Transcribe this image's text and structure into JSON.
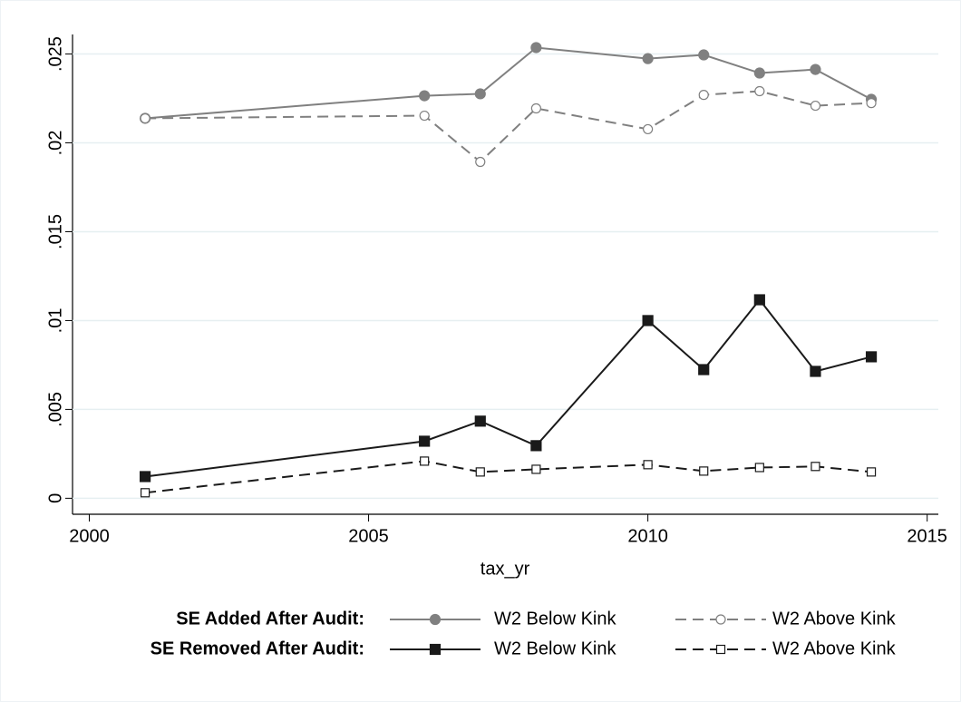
{
  "chart_data": {
    "type": "line",
    "x_label": "tax_yr",
    "x": [
      2001,
      2006,
      2007,
      2008,
      2010,
      2011,
      2012,
      2013,
      2014
    ],
    "series": [
      {
        "name": "W2 Below Kink",
        "color": "#808080",
        "dashed": false,
        "marker": "circle",
        "values": [
          0.02138,
          0.02265,
          0.02276,
          0.02536,
          0.02474,
          0.02495,
          0.02393,
          0.02413,
          0.02245
        ]
      },
      {
        "name": "W2 Above Kink",
        "color": "#808080",
        "dashed": true,
        "marker": "circle-open",
        "values": [
          0.02138,
          0.02153,
          0.01893,
          0.02194,
          0.02077,
          0.0227,
          0.02291,
          0.02209,
          0.02224
        ]
      },
      {
        "name": "W2 Below Kink",
        "color": "#1a1a1a",
        "dashed": false,
        "marker": "square",
        "values": [
          0.00122,
          0.00321,
          0.00434,
          0.00296,
          0.01,
          0.00724,
          0.01117,
          0.00714,
          0.00796
        ]
      },
      {
        "name": "W2 Above Kink",
        "color": "#1a1a1a",
        "dashed": true,
        "marker": "square-open",
        "values": [
          0.00031,
          0.00209,
          0.00148,
          0.00163,
          0.00189,
          0.00153,
          0.00173,
          0.00179,
          0.00148
        ]
      }
    ],
    "legend_groups": [
      "SE Added After Audit:",
      "SE Removed After Audit:"
    ],
    "xlim": [
      1999.7,
      2015.2
    ],
    "xticks": [
      2000,
      2005,
      2010,
      2015
    ],
    "ylim": [
      -0.0009,
      0.0261
    ],
    "yticks": [
      0,
      {
        "value": 0.005,
        "label": ".005"
      },
      {
        "value": 0.01,
        "label": ".01"
      },
      {
        "value": 0.015,
        "label": ".015"
      },
      {
        "value": 0.02,
        "label": ".02"
      },
      {
        "value": 0.025,
        "label": ".025"
      }
    ],
    "grid": true
  }
}
